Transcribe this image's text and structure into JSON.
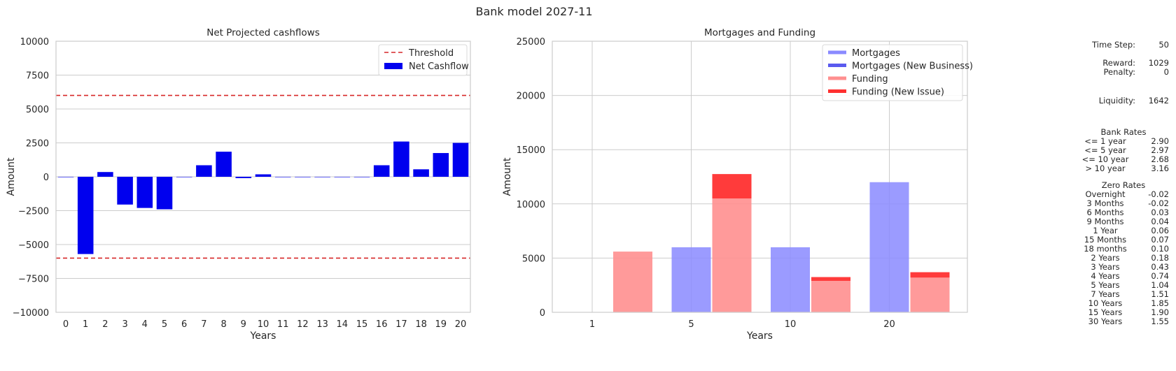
{
  "figure": {
    "title": "Bank model 2027-11"
  },
  "chart_data": [
    {
      "type": "bar",
      "title": "Net Projected cashflows",
      "xlabel": "Years",
      "ylabel": "Amount",
      "ylim": [
        -10000,
        10000
      ],
      "yticks": [
        -10000,
        -7500,
        -5000,
        -2500,
        0,
        2500,
        5000,
        7500,
        10000
      ],
      "ytick_labels": [
        "−10000",
        "−7500",
        "−5000",
        "−2500",
        "0",
        "2500",
        "5000",
        "7500",
        "10000"
      ],
      "categories": [
        "0",
        "1",
        "2",
        "3",
        "4",
        "5",
        "6",
        "7",
        "8",
        "9",
        "10",
        "11",
        "12",
        "13",
        "14",
        "15",
        "16",
        "17",
        "18",
        "19",
        "20"
      ],
      "series": [
        {
          "name": "Net Cashflow",
          "color": "#0000ee",
          "values": [
            0,
            -5700,
            350,
            -2050,
            -2300,
            -2400,
            0,
            850,
            1850,
            -100,
            180,
            0,
            0,
            0,
            0,
            0,
            850,
            2600,
            550,
            1750,
            2500
          ]
        }
      ],
      "thresholds": [
        {
          "name": "Threshold",
          "value": 6000,
          "color": "#d62728"
        },
        {
          "name": "Threshold",
          "value": -6000,
          "color": "#d62728"
        }
      ],
      "legend": {
        "placement": "top-right",
        "entries": [
          "Threshold",
          "Net Cashflow"
        ]
      },
      "grid": true
    },
    {
      "type": "bar",
      "title": "Mortgages and Funding",
      "xlabel": "Years",
      "ylabel": "Amount",
      "ylim": [
        0,
        25000
      ],
      "yticks": [
        0,
        5000,
        10000,
        15000,
        20000,
        25000
      ],
      "ytick_labels": [
        "0",
        "5000",
        "10000",
        "15000",
        "20000",
        "25000"
      ],
      "categories": [
        "1",
        "5",
        "10",
        "20"
      ],
      "series": [
        {
          "name": "Mortgages",
          "color": "#8a8aff",
          "values": [
            0,
            6000,
            6000,
            12000
          ]
        },
        {
          "name": "Mortgages (New Business)",
          "color": "#5a5aef",
          "values": [
            0,
            0,
            0,
            0
          ]
        },
        {
          "name": "Funding",
          "color": "#ff8f8f",
          "values": [
            5600,
            10500,
            2900,
            3200
          ]
        },
        {
          "name": "Funding (New Issue)",
          "color": "#ff3030",
          "values": [
            0,
            2250,
            350,
            500
          ]
        }
      ],
      "legend": {
        "placement": "top-right",
        "entries": [
          "Mortgages",
          "Mortgages (New Business)",
          "Funding",
          "Funding (New Issue)"
        ]
      },
      "grid": true
    }
  ],
  "info": {
    "time_step_label": "Time Step:",
    "time_step_value": "50",
    "reward_label": "Reward:",
    "reward_value": "1029",
    "penalty_label": "Penalty:",
    "penalty_value": "0",
    "liquidity_label": "Liquidity:",
    "liquidity_value": "1642",
    "bank_rates_title": "Bank Rates",
    "bank_rates": [
      {
        "label": "<= 1 year",
        "value": "2.90"
      },
      {
        "label": "<= 5 year",
        "value": "2.97"
      },
      {
        "label": "<= 10 year",
        "value": "2.68"
      },
      {
        "label": "> 10 year",
        "value": "3.16"
      }
    ],
    "zero_rates_title": "Zero Rates",
    "zero_rates": [
      {
        "label": "Overnight",
        "value": "-0.02"
      },
      {
        "label": "3 Months",
        "value": "-0.02"
      },
      {
        "label": "6 Months",
        "value": "0.03"
      },
      {
        "label": "9 Months",
        "value": "0.04"
      },
      {
        "label": "1 Year",
        "value": "0.06"
      },
      {
        "label": "15 Months",
        "value": "0.07"
      },
      {
        "label": "18 months",
        "value": "0.10"
      },
      {
        "label": "2 Years",
        "value": "0.18"
      },
      {
        "label": "3 Years",
        "value": "0.43"
      },
      {
        "label": "4 Years",
        "value": "0.74"
      },
      {
        "label": "5 Years",
        "value": "1.04"
      },
      {
        "label": "7 Years",
        "value": "1.51"
      },
      {
        "label": "10 Years",
        "value": "1.85"
      },
      {
        "label": "15 Years",
        "value": "1.90"
      },
      {
        "label": "30 Years",
        "value": "1.55"
      }
    ]
  }
}
